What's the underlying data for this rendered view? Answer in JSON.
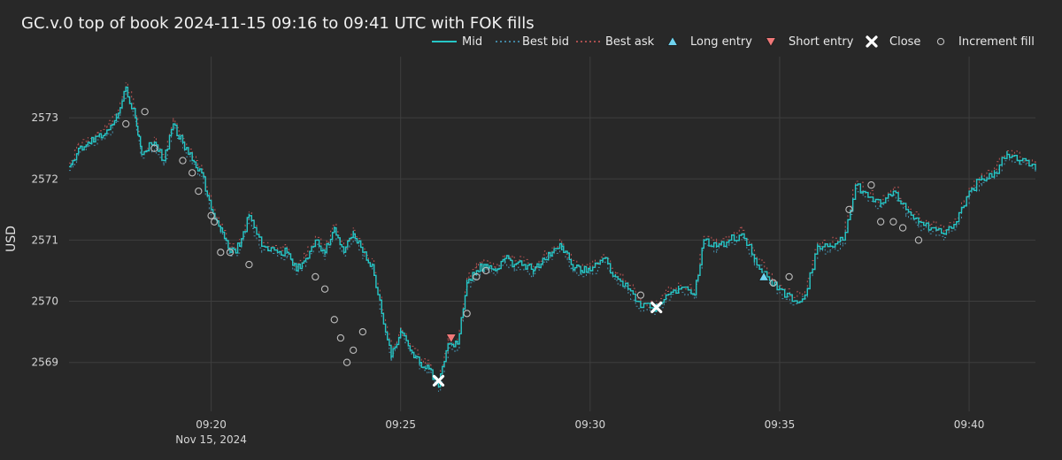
{
  "chart_data": {
    "type": "line",
    "title": "GC.v.0 top of book 2024-11-15 09:16 to 09:41 UTC with FOK fills",
    "xlabel": "",
    "ylabel": "USD",
    "x_range": [
      "09:16:15",
      "09:41:45"
    ],
    "ylim": [
      2568.2,
      2574.0
    ],
    "x_ticks": [
      {
        "t": "09:20",
        "label": "09:20",
        "sublabel": "Nov 15, 2024"
      },
      {
        "t": "09:25",
        "label": "09:25"
      },
      {
        "t": "09:30",
        "label": "09:30"
      },
      {
        "t": "09:35",
        "label": "09:35"
      },
      {
        "t": "09:40",
        "label": "09:40"
      }
    ],
    "y_ticks": [
      2569,
      2570,
      2571,
      2572,
      2573
    ],
    "grid": true,
    "legend_position": "top-right",
    "colors": {
      "background": "#282828",
      "grid": "#3e3e3e",
      "mid": "#26c6c6",
      "bid": "#4aa3c7",
      "ask": "#d45a5a",
      "long_entry": "#6fd3ef",
      "short_entry": "#f07878",
      "close": "#ffffff",
      "fill": "#bdbdbd"
    },
    "mid_series": {
      "name": "Mid",
      "points": [
        [
          "09:16:15",
          2572.2
        ],
        [
          "09:16:30",
          2572.5
        ],
        [
          "09:16:45",
          2572.6
        ],
        [
          "09:17:00",
          2572.7
        ],
        [
          "09:17:15",
          2572.8
        ],
        [
          "09:17:30",
          2573.0
        ],
        [
          "09:17:45",
          2573.5
        ],
        [
          "09:18:00",
          2573.0
        ],
        [
          "09:18:10",
          2572.4
        ],
        [
          "09:18:30",
          2572.6
        ],
        [
          "09:18:45",
          2572.3
        ],
        [
          "09:19:00",
          2572.9
        ],
        [
          "09:19:15",
          2572.6
        ],
        [
          "09:19:30",
          2572.3
        ],
        [
          "09:19:45",
          2572.1
        ],
        [
          "09:20:00",
          2571.5
        ],
        [
          "09:20:15",
          2571.2
        ],
        [
          "09:20:30",
          2570.8
        ],
        [
          "09:20:45",
          2570.9
        ],
        [
          "09:21:00",
          2571.4
        ],
        [
          "09:21:20",
          2570.9
        ],
        [
          "09:21:45",
          2570.8
        ],
        [
          "09:22:00",
          2570.8
        ],
        [
          "09:22:15",
          2570.5
        ],
        [
          "09:22:30",
          2570.7
        ],
        [
          "09:22:45",
          2571.0
        ],
        [
          "09:23:00",
          2570.8
        ],
        [
          "09:23:15",
          2571.2
        ],
        [
          "09:23:30",
          2570.8
        ],
        [
          "09:23:45",
          2571.1
        ],
        [
          "09:24:00",
          2570.8
        ],
        [
          "09:24:15",
          2570.6
        ],
        [
          "09:24:30",
          2569.8
        ],
        [
          "09:24:45",
          2569.1
        ],
        [
          "09:25:00",
          2569.5
        ],
        [
          "09:25:15",
          2569.2
        ],
        [
          "09:25:30",
          2569.0
        ],
        [
          "09:25:45",
          2568.9
        ],
        [
          "09:26:00",
          2568.6
        ],
        [
          "09:26:15",
          2569.3
        ],
        [
          "09:26:30",
          2569.3
        ],
        [
          "09:26:45",
          2570.3
        ],
        [
          "09:27:00",
          2570.5
        ],
        [
          "09:27:15",
          2570.6
        ],
        [
          "09:27:30",
          2570.5
        ],
        [
          "09:27:45",
          2570.7
        ],
        [
          "09:28:00",
          2570.6
        ],
        [
          "09:28:15",
          2570.6
        ],
        [
          "09:28:30",
          2570.5
        ],
        [
          "09:28:45",
          2570.7
        ],
        [
          "09:29:00",
          2570.8
        ],
        [
          "09:29:15",
          2570.9
        ],
        [
          "09:29:30",
          2570.6
        ],
        [
          "09:29:45",
          2570.5
        ],
        [
          "09:30:00",
          2570.5
        ],
        [
          "09:30:20",
          2570.7
        ],
        [
          "09:30:40",
          2570.4
        ],
        [
          "09:31:00",
          2570.2
        ],
        [
          "09:31:20",
          2569.9
        ],
        [
          "09:31:45",
          2569.9
        ],
        [
          "09:32:00",
          2570.1
        ],
        [
          "09:32:20",
          2570.2
        ],
        [
          "09:32:45",
          2570.1
        ],
        [
          "09:33:00",
          2571.0
        ],
        [
          "09:33:20",
          2570.9
        ],
        [
          "09:33:40",
          2571.0
        ],
        [
          "09:34:00",
          2571.1
        ],
        [
          "09:34:20",
          2570.7
        ],
        [
          "09:34:40",
          2570.4
        ],
        [
          "09:35:00",
          2570.2
        ],
        [
          "09:35:20",
          2570.0
        ],
        [
          "09:35:40",
          2570.1
        ],
        [
          "09:36:00",
          2570.9
        ],
        [
          "09:36:20",
          2570.9
        ],
        [
          "09:36:40",
          2571.0
        ],
        [
          "09:37:00",
          2571.9
        ],
        [
          "09:37:20",
          2571.7
        ],
        [
          "09:37:40",
          2571.6
        ],
        [
          "09:38:00",
          2571.8
        ],
        [
          "09:38:20",
          2571.5
        ],
        [
          "09:38:40",
          2571.3
        ],
        [
          "09:39:00",
          2571.2
        ],
        [
          "09:39:20",
          2571.1
        ],
        [
          "09:39:40",
          2571.3
        ],
        [
          "09:40:00",
          2571.8
        ],
        [
          "09:40:20",
          2572.0
        ],
        [
          "09:40:40",
          2572.1
        ],
        [
          "09:41:00",
          2572.4
        ],
        [
          "09:41:20",
          2572.3
        ],
        [
          "09:41:45",
          2572.2
        ]
      ]
    },
    "bid_series": {
      "name": "Best bid",
      "offset": -0.06
    },
    "ask_series": {
      "name": "Best ask",
      "offset": 0.06
    },
    "markers": {
      "long_entry": {
        "name": "Long entry",
        "points": [
          [
            "09:34:35",
            2570.4
          ]
        ]
      },
      "short_entry": {
        "name": "Short entry",
        "points": [
          [
            "09:26:20",
            2569.4
          ]
        ]
      },
      "close": {
        "name": "Close",
        "points": [
          [
            "09:26:00",
            2568.7
          ],
          [
            "09:31:45",
            2569.9
          ]
        ]
      },
      "increment_fill": {
        "name": "Increment fill",
        "points": [
          [
            "09:17:45",
            2572.9
          ],
          [
            "09:18:15",
            2573.1
          ],
          [
            "09:18:30",
            2572.5
          ],
          [
            "09:19:15",
            2572.3
          ],
          [
            "09:19:30",
            2572.1
          ],
          [
            "09:19:40",
            2571.8
          ],
          [
            "09:20:00",
            2571.4
          ],
          [
            "09:20:05",
            2571.3
          ],
          [
            "09:20:15",
            2570.8
          ],
          [
            "09:20:30",
            2570.8
          ],
          [
            "09:21:00",
            2570.6
          ],
          [
            "09:22:45",
            2570.4
          ],
          [
            "09:23:00",
            2570.2
          ],
          [
            "09:23:15",
            2569.7
          ],
          [
            "09:23:25",
            2569.4
          ],
          [
            "09:23:35",
            2569.0
          ],
          [
            "09:23:45",
            2569.2
          ],
          [
            "09:24:00",
            2569.5
          ],
          [
            "09:26:45",
            2569.8
          ],
          [
            "09:27:00",
            2570.4
          ],
          [
            "09:27:15",
            2570.5
          ],
          [
            "09:31:20",
            2570.1
          ],
          [
            "09:34:50",
            2570.3
          ],
          [
            "09:35:15",
            2570.4
          ],
          [
            "09:36:50",
            2571.5
          ],
          [
            "09:37:25",
            2571.9
          ],
          [
            "09:37:40",
            2571.3
          ],
          [
            "09:38:00",
            2571.3
          ],
          [
            "09:38:15",
            2571.2
          ],
          [
            "09:38:40",
            2571.0
          ]
        ]
      }
    }
  }
}
